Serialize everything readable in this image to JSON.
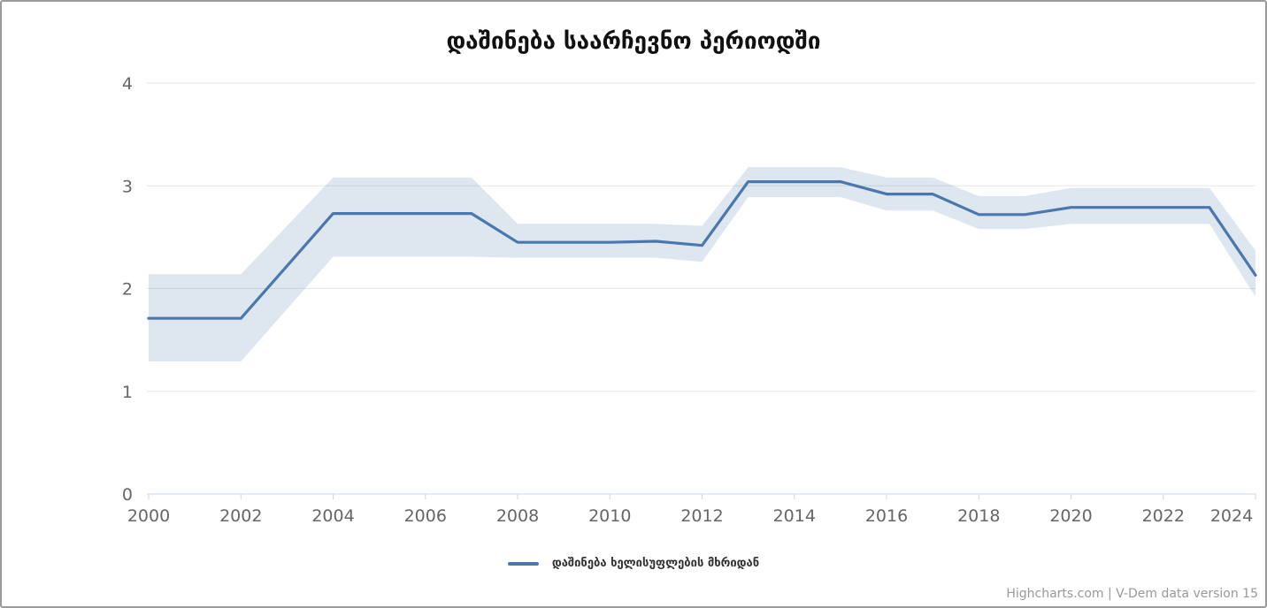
{
  "chart": {
    "title": "დაშინება საარჩევნო პერიოდში",
    "legend": {
      "label": "დაშინება ხელისუფლების მხრიდან"
    },
    "credits": {
      "link": "Highcharts.com",
      "rest": " | V-Dem data version 15"
    },
    "colors": {
      "line": "#4a77ad",
      "band": "rgba(74,119,173,0.18)",
      "grid": "#e6e6e6",
      "axis": "#ccd6eb",
      "tick_label": "#666666",
      "title": "#111111",
      "legend_text": "#333333",
      "credits_text": "#999999",
      "border": "#9b9b9b"
    }
  },
  "chart_data": {
    "type": "line",
    "title": "დაშინება საარჩევნო პერიოდში",
    "xlabel": "",
    "ylabel": "",
    "xlim": [
      2000,
      2024
    ],
    "ylim": [
      0,
      4
    ],
    "x_ticks": [
      2000,
      2002,
      2004,
      2006,
      2008,
      2010,
      2012,
      2014,
      2016,
      2018,
      2020,
      2022,
      2024
    ],
    "y_ticks": [
      0,
      1,
      2,
      3,
      4
    ],
    "grid": "horizontal",
    "legend_position": "bottom-center",
    "credits": "Highcharts.com | V-Dem data version 15",
    "x": [
      2000,
      2001,
      2002,
      2003,
      2004,
      2005,
      2006,
      2007,
      2008,
      2009,
      2010,
      2011,
      2012,
      2013,
      2014,
      2015,
      2016,
      2017,
      2018,
      2019,
      2020,
      2021,
      2022,
      2023,
      2024
    ],
    "series": [
      {
        "name": "დაშინება ხელისუფლების მხრიდან",
        "type": "line",
        "values": [
          1.71,
          1.71,
          1.71,
          2.22,
          2.73,
          2.73,
          2.73,
          2.73,
          2.45,
          2.45,
          2.45,
          2.46,
          2.42,
          3.04,
          3.04,
          3.04,
          2.92,
          2.92,
          2.72,
          2.72,
          2.79,
          2.79,
          2.79,
          2.79,
          2.13
        ]
      },
      {
        "name": "confidence-interval-band",
        "type": "arearange",
        "low": [
          1.29,
          1.29,
          1.29,
          1.8,
          2.31,
          2.31,
          2.31,
          2.31,
          2.3,
          2.3,
          2.3,
          2.3,
          2.26,
          2.89,
          2.89,
          2.89,
          2.76,
          2.76,
          2.58,
          2.58,
          2.63,
          2.63,
          2.63,
          2.63,
          1.92
        ],
        "high": [
          2.14,
          2.14,
          2.14,
          2.61,
          3.08,
          3.08,
          3.08,
          3.08,
          2.63,
          2.63,
          2.63,
          2.63,
          2.61,
          3.18,
          3.18,
          3.18,
          3.08,
          3.08,
          2.9,
          2.9,
          2.98,
          2.98,
          2.98,
          2.98,
          2.37
        ]
      }
    ]
  }
}
